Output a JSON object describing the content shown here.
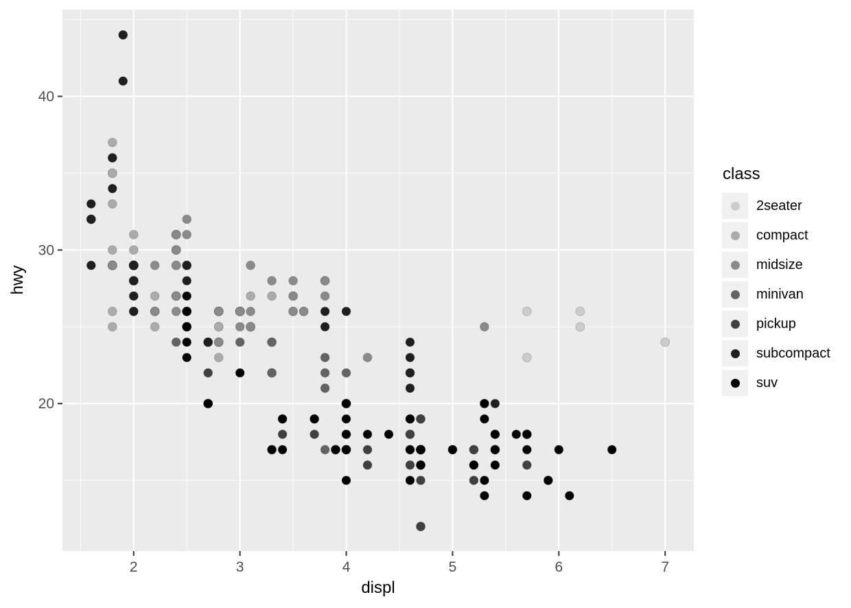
{
  "figure_title": "ggplot scatter plot of highway mileage vs engine displacement by vehicle class",
  "colors": {
    "background": "#FFFFFF",
    "panel_bg": "#EBEBEB",
    "gridline_major": "#FFFFFF",
    "gridline_minor": "#FFFFFF",
    "axis_tick_label": "#4D4D4D",
    "axis_title": "#000000",
    "tick_mark": "#333333",
    "legend_key_bg": "#F0F0F0",
    "legend_text": "#000000"
  },
  "chart_data": {
    "type": "scatter",
    "title": "",
    "xlabel": "displ",
    "ylabel": "hwy",
    "legend_title": "class",
    "legend_position": "right",
    "grid": true,
    "xlim": [
      1.33,
      7.27
    ],
    "ylim": [
      10.4,
      45.65
    ],
    "x_ticks": [
      2,
      3,
      4,
      5,
      6,
      7
    ],
    "y_ticks": [
      20,
      30,
      40
    ],
    "x_minor": [
      1.5,
      2.5,
      3.5,
      4.5,
      5.5,
      6.5
    ],
    "y_minor": [
      15,
      25,
      35,
      45
    ],
    "classes": [
      {
        "name": "2seater",
        "color": "#CCCCCC"
      },
      {
        "name": "compact",
        "color": "#ABABAB"
      },
      {
        "name": "midsize",
        "color": "#8A8A8A"
      },
      {
        "name": "minivan",
        "color": "#636363"
      },
      {
        "name": "pickup",
        "color": "#404040"
      },
      {
        "name": "subcompact",
        "color": "#1F1F1F"
      },
      {
        "name": "suv",
        "color": "#000000"
      }
    ],
    "points": [
      [
        5.7,
        26,
        0
      ],
      [
        5.7,
        23,
        0
      ],
      [
        6.2,
        26,
        0
      ],
      [
        6.2,
        25,
        0
      ],
      [
        7.0,
        24,
        0
      ],
      [
        1.8,
        29,
        1
      ],
      [
        1.8,
        29,
        1
      ],
      [
        2.0,
        31,
        1
      ],
      [
        2.0,
        30,
        1
      ],
      [
        2.8,
        26,
        1
      ],
      [
        2.8,
        26,
        1
      ],
      [
        3.1,
        27,
        1
      ],
      [
        1.8,
        26,
        1
      ],
      [
        1.8,
        25,
        1
      ],
      [
        2.0,
        28,
        1
      ],
      [
        2.0,
        27,
        1
      ],
      [
        2.8,
        25,
        1
      ],
      [
        2.8,
        25,
        1
      ],
      [
        3.1,
        25,
        1
      ],
      [
        3.1,
        25,
        1
      ],
      [
        2.2,
        26,
        1
      ],
      [
        2.2,
        27,
        1
      ],
      [
        2.4,
        29,
        1
      ],
      [
        2.4,
        31,
        1
      ],
      [
        3.0,
        26,
        1
      ],
      [
        3.0,
        26,
        1
      ],
      [
        3.3,
        27,
        1
      ],
      [
        1.8,
        30,
        1
      ],
      [
        1.8,
        33,
        1
      ],
      [
        1.8,
        35,
        1
      ],
      [
        1.8,
        35,
        1
      ],
      [
        1.8,
        37,
        1
      ],
      [
        2.0,
        29,
        1
      ],
      [
        2.0,
        29,
        1
      ],
      [
        2.0,
        28,
        1
      ],
      [
        2.0,
        29,
        1
      ],
      [
        2.8,
        24,
        1
      ],
      [
        1.9,
        44,
        1
      ],
      [
        2.0,
        29,
        1
      ],
      [
        2.0,
        29,
        1
      ],
      [
        2.0,
        28,
        1
      ],
      [
        2.0,
        29,
        1
      ],
      [
        2.5,
        29,
        1
      ],
      [
        2.5,
        29,
        1
      ],
      [
        2.8,
        23,
        1
      ],
      [
        2.8,
        24,
        1
      ],
      [
        2.2,
        26,
        1
      ],
      [
        2.2,
        25,
        1
      ],
      [
        2.5,
        25,
        1
      ],
      [
        2.5,
        25,
        1
      ],
      [
        2.5,
        26,
        1
      ],
      [
        2.5,
        26,
        1
      ],
      [
        2.8,
        24,
        2
      ],
      [
        3.1,
        25,
        2
      ],
      [
        4.2,
        23,
        2
      ],
      [
        2.4,
        27,
        2
      ],
      [
        2.4,
        30,
        2
      ],
      [
        3.1,
        29,
        2
      ],
      [
        3.5,
        27,
        2
      ],
      [
        3.6,
        26,
        2
      ],
      [
        2.4,
        26,
        2
      ],
      [
        2.4,
        27,
        2
      ],
      [
        2.4,
        30,
        2
      ],
      [
        2.4,
        31,
        2
      ],
      [
        2.5,
        26,
        2
      ],
      [
        2.5,
        26,
        2
      ],
      [
        3.3,
        28,
        2
      ],
      [
        2.4,
        29,
        2
      ],
      [
        2.4,
        27,
        2
      ],
      [
        2.5,
        31,
        2
      ],
      [
        2.5,
        32,
        2
      ],
      [
        3.5,
        27,
        2
      ],
      [
        3.5,
        26,
        2
      ],
      [
        3.0,
        26,
        2
      ],
      [
        3.0,
        25,
        2
      ],
      [
        3.5,
        26,
        2
      ],
      [
        3.1,
        26,
        2
      ],
      [
        3.8,
        28,
        2
      ],
      [
        3.8,
        28,
        2
      ],
      [
        3.8,
        27,
        2
      ],
      [
        5.3,
        25,
        2
      ],
      [
        2.2,
        26,
        2
      ],
      [
        2.2,
        29,
        2
      ],
      [
        2.4,
        30,
        2
      ],
      [
        2.4,
        31,
        2
      ],
      [
        3.0,
        26,
        2
      ],
      [
        3.0,
        26,
        2
      ],
      [
        3.5,
        28,
        2
      ],
      [
        1.8,
        29,
        2
      ],
      [
        1.8,
        29,
        2
      ],
      [
        2.0,
        28,
        2
      ],
      [
        2.0,
        29,
        2
      ],
      [
        2.8,
        26,
        2
      ],
      [
        2.8,
        26,
        2
      ],
      [
        3.6,
        26,
        2
      ],
      [
        2.4,
        24,
        3
      ],
      [
        3.0,
        24,
        3
      ],
      [
        3.3,
        22,
        3
      ],
      [
        3.3,
        22,
        3
      ],
      [
        3.3,
        24,
        3
      ],
      [
        3.3,
        24,
        3
      ],
      [
        3.8,
        17,
        3
      ],
      [
        3.8,
        22,
        3
      ],
      [
        3.8,
        21,
        3
      ],
      [
        3.8,
        23,
        3
      ],
      [
        4.0,
        22,
        3
      ],
      [
        3.7,
        19,
        4
      ],
      [
        3.7,
        18,
        4
      ],
      [
        3.9,
        17,
        4
      ],
      [
        3.9,
        17,
        4
      ],
      [
        4.7,
        19,
        4
      ],
      [
        4.7,
        19,
        4
      ],
      [
        4.7,
        12,
        4
      ],
      [
        5.2,
        17,
        4
      ],
      [
        5.2,
        17,
        4
      ],
      [
        4.7,
        17,
        4
      ],
      [
        4.7,
        16,
        4
      ],
      [
        4.7,
        17,
        4
      ],
      [
        4.7,
        17,
        4
      ],
      [
        4.7,
        15,
        4
      ],
      [
        4.7,
        12,
        4
      ],
      [
        5.2,
        15,
        4
      ],
      [
        5.2,
        16,
        4
      ],
      [
        5.7,
        16,
        4
      ],
      [
        5.9,
        15,
        4
      ],
      [
        4.2,
        17,
        4
      ],
      [
        4.2,
        16,
        4
      ],
      [
        4.6,
        18,
        4
      ],
      [
        4.6,
        17,
        4
      ],
      [
        4.6,
        18,
        4
      ],
      [
        4.6,
        16,
        4
      ],
      [
        5.4,
        17,
        4
      ],
      [
        2.7,
        20,
        4
      ],
      [
        2.7,
        22,
        4
      ],
      [
        2.7,
        20,
        4
      ],
      [
        3.4,
        19,
        4
      ],
      [
        3.4,
        18,
        4
      ],
      [
        4.0,
        20,
        4
      ],
      [
        4.0,
        18,
        4
      ],
      [
        1.6,
        33,
        5
      ],
      [
        1.6,
        32,
        5
      ],
      [
        1.6,
        32,
        5
      ],
      [
        1.6,
        29,
        5
      ],
      [
        1.6,
        32,
        5
      ],
      [
        1.8,
        34,
        5
      ],
      [
        1.8,
        36,
        5
      ],
      [
        1.8,
        36,
        5
      ],
      [
        2.0,
        29,
        5
      ],
      [
        2.0,
        26,
        5
      ],
      [
        2.0,
        29,
        5
      ],
      [
        2.0,
        28,
        5
      ],
      [
        2.0,
        27,
        5
      ],
      [
        2.7,
        24,
        5
      ],
      [
        2.7,
        24,
        5
      ],
      [
        2.7,
        24,
        5
      ],
      [
        3.8,
        26,
        5
      ],
      [
        3.8,
        25,
        5
      ],
      [
        4.0,
        26,
        5
      ],
      [
        4.6,
        24,
        5
      ],
      [
        4.6,
        21,
        5
      ],
      [
        4.6,
        22,
        5
      ],
      [
        4.6,
        23,
        5
      ],
      [
        4.6,
        22,
        5
      ],
      [
        5.4,
        20,
        5
      ],
      [
        1.9,
        44,
        5
      ],
      [
        1.9,
        41,
        5
      ],
      [
        2.0,
        29,
        5
      ],
      [
        2.0,
        26,
        5
      ],
      [
        2.5,
        28,
        5
      ],
      [
        2.5,
        29,
        5
      ],
      [
        5.3,
        20,
        6
      ],
      [
        5.3,
        15,
        6
      ],
      [
        5.3,
        20,
        6
      ],
      [
        5.7,
        17,
        6
      ],
      [
        6.0,
        17,
        6
      ],
      [
        5.3,
        14,
        6
      ],
      [
        5.3,
        19,
        6
      ],
      [
        5.7,
        14,
        6
      ],
      [
        6.5,
        17,
        6
      ],
      [
        3.9,
        17,
        6
      ],
      [
        4.7,
        17,
        6
      ],
      [
        4.7,
        17,
        6
      ],
      [
        4.7,
        16,
        6
      ],
      [
        5.2,
        16,
        6
      ],
      [
        5.7,
        18,
        6
      ],
      [
        5.9,
        15,
        6
      ],
      [
        4.6,
        17,
        6
      ],
      [
        5.4,
        17,
        6
      ],
      [
        5.4,
        18,
        6
      ],
      [
        4.0,
        17,
        6
      ],
      [
        4.0,
        17,
        6
      ],
      [
        4.0,
        18,
        6
      ],
      [
        4.0,
        17,
        6
      ],
      [
        4.6,
        19,
        6
      ],
      [
        5.0,
        17,
        6
      ],
      [
        3.0,
        22,
        6
      ],
      [
        3.7,
        19,
        6
      ],
      [
        4.0,
        20,
        6
      ],
      [
        4.7,
        17,
        6
      ],
      [
        4.7,
        17,
        6
      ],
      [
        4.7,
        17,
        6
      ],
      [
        5.7,
        18,
        6
      ],
      [
        6.1,
        14,
        6
      ],
      [
        4.0,
        15,
        6
      ],
      [
        4.2,
        18,
        6
      ],
      [
        4.4,
        18,
        6
      ],
      [
        4.6,
        15,
        6
      ],
      [
        5.4,
        17,
        6
      ],
      [
        5.4,
        16,
        6
      ],
      [
        5.4,
        18,
        6
      ],
      [
        4.0,
        17,
        6
      ],
      [
        4.0,
        19,
        6
      ],
      [
        4.6,
        19,
        6
      ],
      [
        5.0,
        17,
        6
      ],
      [
        3.3,
        17,
        6
      ],
      [
        3.3,
        17,
        6
      ],
      [
        4.0,
        20,
        6
      ],
      [
        5.6,
        18,
        6
      ],
      [
        2.5,
        25,
        6
      ],
      [
        2.5,
        24,
        6
      ],
      [
        2.5,
        27,
        6
      ],
      [
        2.5,
        25,
        6
      ],
      [
        2.5,
        26,
        6
      ],
      [
        2.5,
        23,
        6
      ],
      [
        2.7,
        20,
        6
      ],
      [
        2.7,
        20,
        6
      ],
      [
        3.4,
        19,
        6
      ],
      [
        3.4,
        17,
        6
      ],
      [
        4.0,
        20,
        6
      ],
      [
        4.7,
        17,
        6
      ],
      [
        4.7,
        16,
        6
      ],
      [
        5.7,
        18,
        6
      ]
    ]
  }
}
